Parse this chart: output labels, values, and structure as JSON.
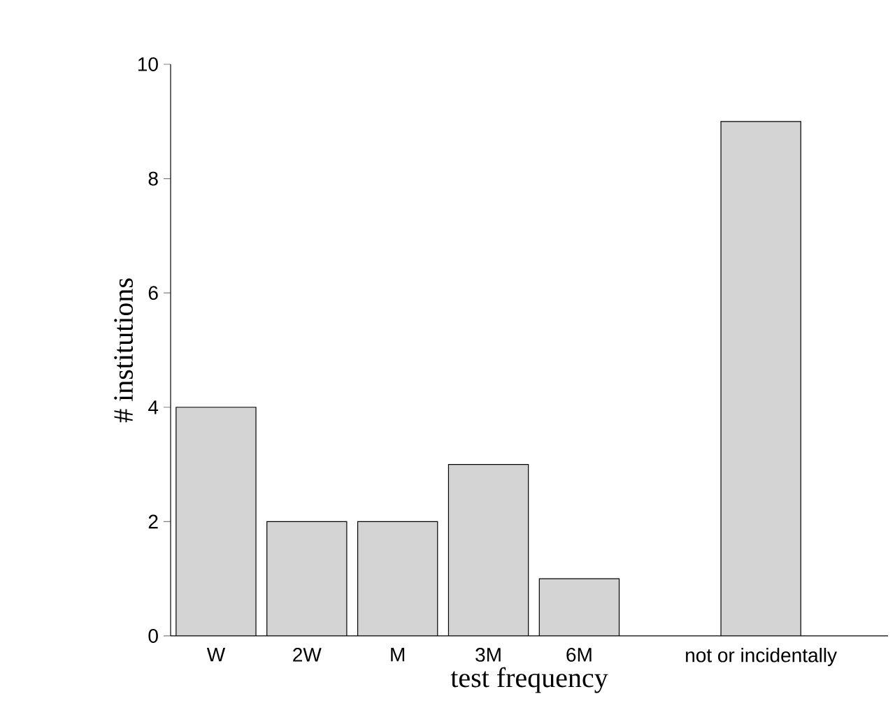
{
  "chart_data": {
    "type": "bar",
    "xlabel": "test frequency",
    "ylabel": "# institutions",
    "categories": [
      "W",
      "2W",
      "M",
      "3M",
      "6M",
      null,
      "not or incidentally"
    ],
    "values": [
      4,
      2,
      2,
      3,
      1,
      null,
      9
    ],
    "color": "#d4d4d4",
    "ylim": [
      0,
      10
    ],
    "yticks": [
      0,
      2,
      4,
      6,
      8,
      10
    ]
  }
}
